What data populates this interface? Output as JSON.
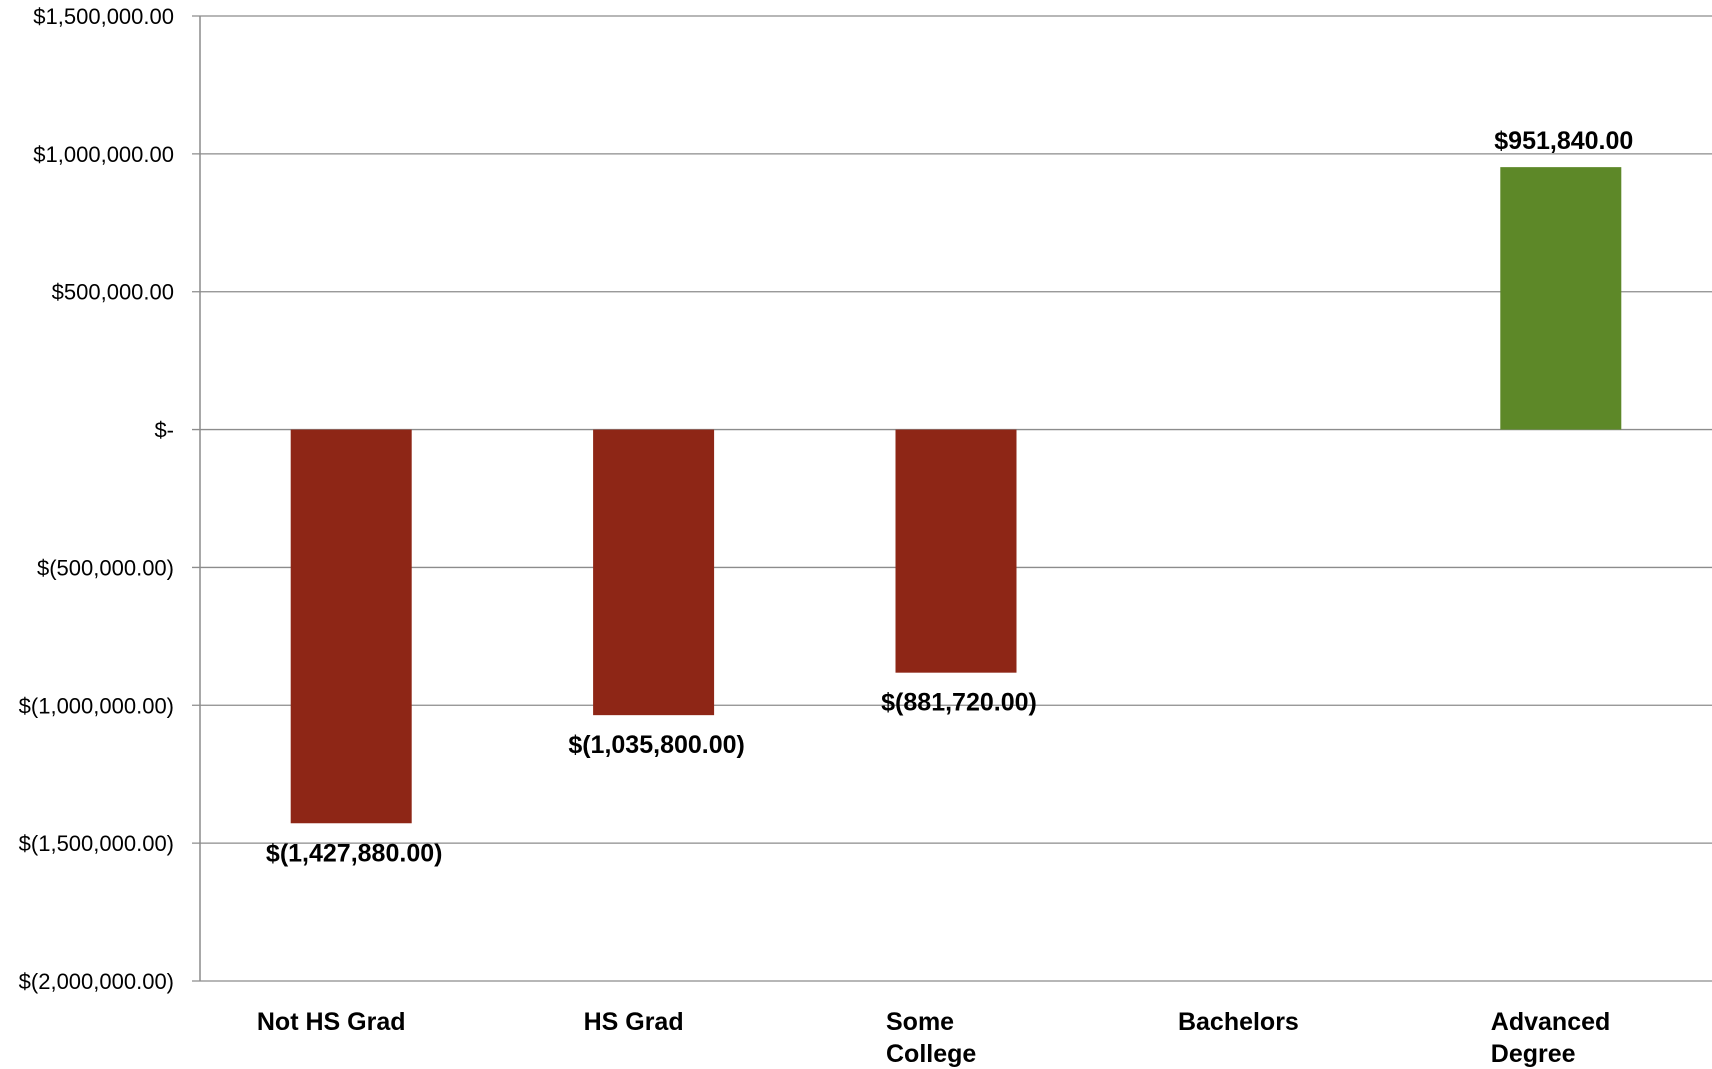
{
  "chart_data": {
    "type": "bar",
    "categories": [
      [
        "Not HS Grad"
      ],
      [
        "HS Grad"
      ],
      [
        "Some",
        "College"
      ],
      [
        "Bachelors"
      ],
      [
        "Advanced",
        "Degree"
      ]
    ],
    "values": [
      -1427880,
      -1035800,
      -881720,
      0,
      951840
    ],
    "data_labels": [
      "$(1,427,880.00)",
      "$(1,035,800.00)",
      "$(881,720.00)",
      "",
      "$951,840.00"
    ],
    "ylim": [
      -2000000,
      1500000
    ],
    "yticks": [
      1500000,
      1000000,
      500000,
      0,
      -500000,
      -1000000,
      -1500000,
      -2000000
    ],
    "ytick_labels": [
      "$1,500,000.00",
      "$1,000,000.00",
      "$500,000.00",
      "$-",
      "$(500,000.00)",
      "$(1,000,000.00)",
      "$(1,500,000.00)",
      "$(2,000,000.00)"
    ],
    "grid": true,
    "legend": false,
    "title": "",
    "xlabel": "",
    "ylabel": "",
    "colors": {
      "negative": "#8E2616",
      "positive": "#5D8828",
      "grid": "#8c8c8c"
    }
  }
}
